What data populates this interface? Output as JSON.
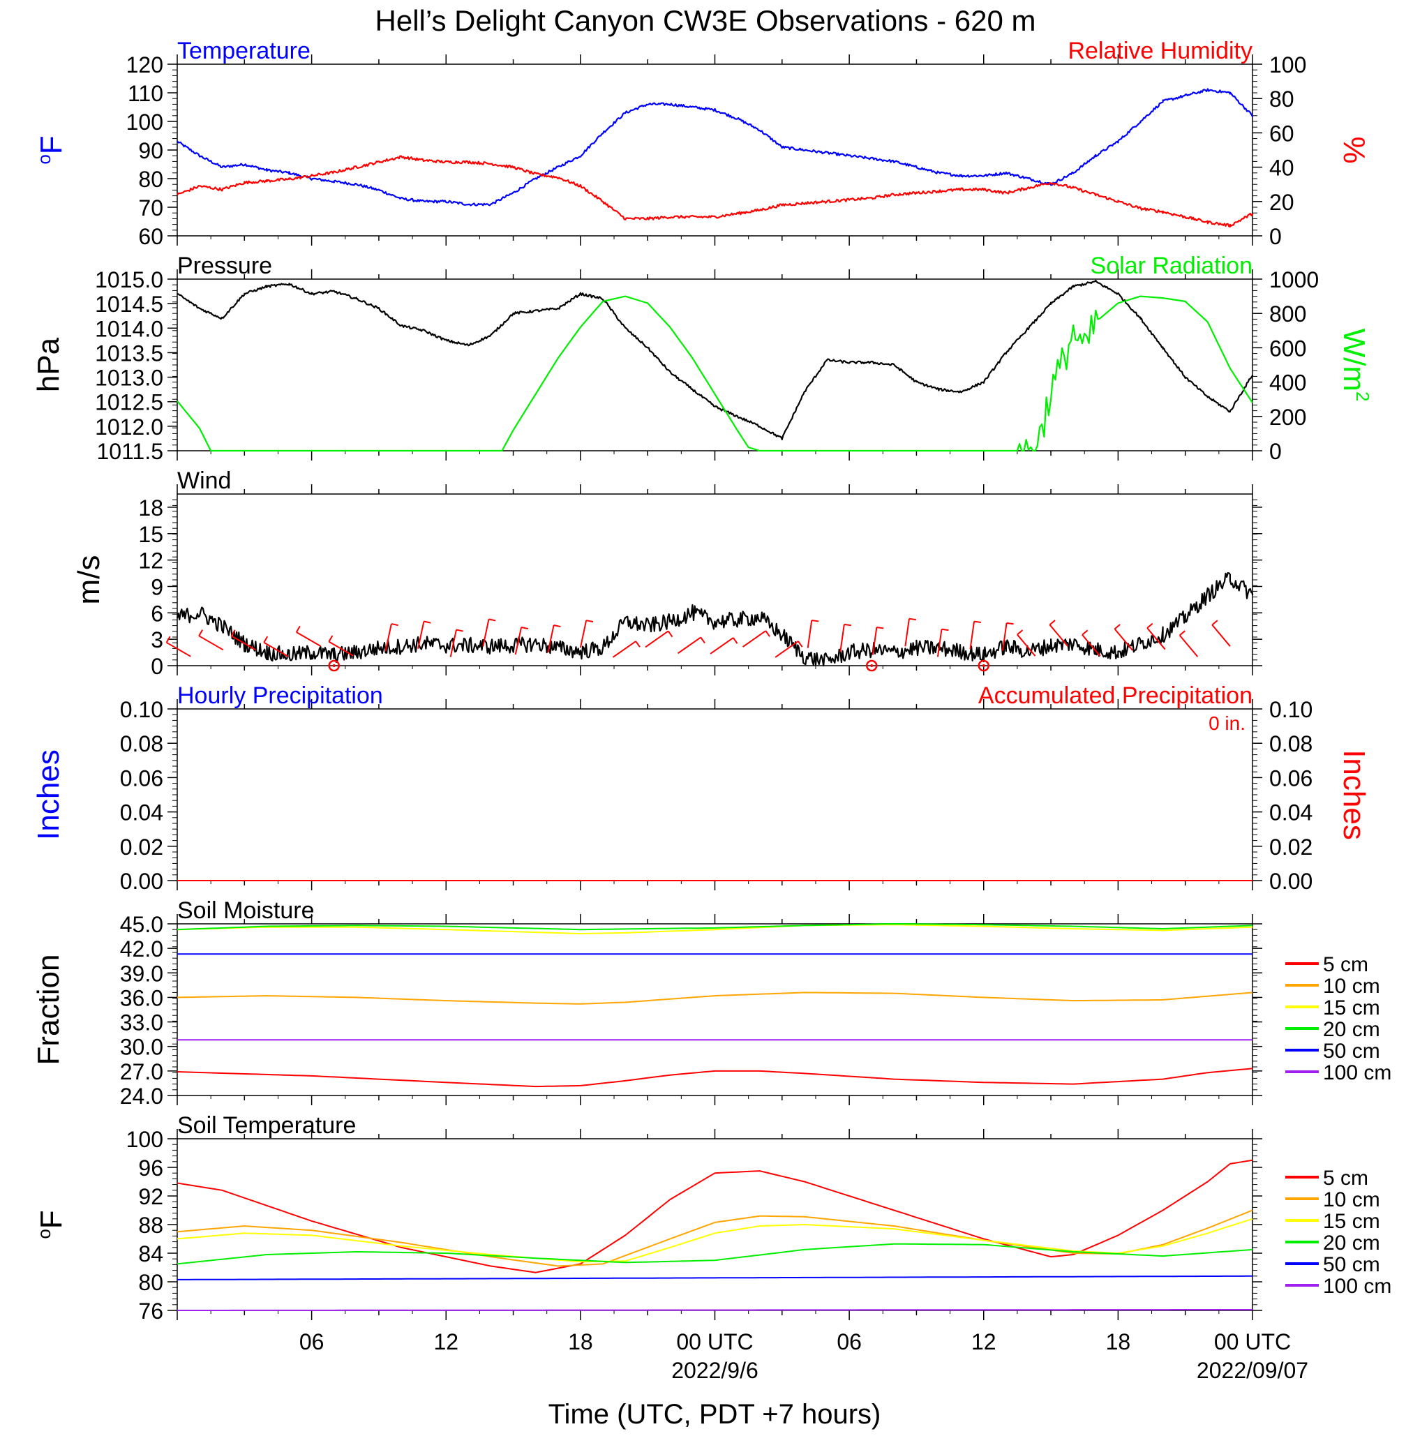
{
  "title": "Hell’s Delight Canyon CW3E Observations - 620 m",
  "xaxis": {
    "tick_labels": [
      "06",
      "12",
      "18",
      "00 UTC",
      "06",
      "12",
      "18",
      "00 UTC"
    ],
    "date_labels": [
      "2022/9/6",
      "2022/09/07"
    ],
    "label": "Time (UTC, PDT +7 hours)"
  },
  "colors": {
    "blue": "#0000ff",
    "red": "#ff0000",
    "green": "#00ee00",
    "black": "#000000",
    "orange": "#ffa500",
    "yellow": "#ffff00",
    "purple": "#a020f0"
  },
  "legend_depths": [
    "5 cm",
    "10 cm",
    "15 cm",
    "20 cm",
    "50 cm",
    "100 cm"
  ],
  "chart_data": [
    {
      "type": "line",
      "panel": "temperature-humidity",
      "left_title": "Temperature",
      "right_title": "Relative Humidity",
      "left_unit": "oF",
      "right_unit": "%",
      "left_ylim": [
        60,
        120
      ],
      "left_ticks": [
        "60",
        "70",
        "80",
        "90",
        "100",
        "110",
        "120"
      ],
      "right_ylim": [
        0,
        100
      ],
      "right_ticks": [
        "0",
        "20",
        "40",
        "60",
        "80",
        "100"
      ],
      "xlim_hours": [
        0,
        48
      ],
      "series": [
        {
          "axis": "left",
          "color": "#0000ff",
          "x": [
            0,
            1,
            2,
            3,
            4,
            5,
            6,
            7,
            8,
            9,
            10,
            11,
            12,
            13,
            14,
            15,
            16,
            17,
            18,
            19,
            20,
            21,
            22,
            23,
            24,
            25,
            26,
            27,
            28,
            29,
            30,
            31,
            32,
            33,
            34,
            35,
            36,
            37,
            38,
            39,
            40,
            41,
            42,
            43,
            44,
            45,
            46,
            47,
            48
          ],
          "y": [
            93,
            88,
            84,
            85,
            83,
            82,
            80,
            79,
            78,
            76,
            73,
            72,
            72,
            71,
            71,
            75,
            80,
            84,
            88,
            96,
            103,
            106,
            106,
            105,
            104,
            101,
            97,
            91,
            90,
            89,
            88,
            87,
            86,
            84,
            82,
            81,
            81,
            82,
            80,
            78,
            82,
            88,
            93,
            100,
            107,
            109,
            111,
            110,
            102
          ]
        },
        {
          "axis": "right",
          "color": "#ff0000",
          "x": [
            0,
            1,
            2,
            3,
            4,
            5,
            6,
            7,
            8,
            9,
            10,
            11,
            12,
            13,
            14,
            15,
            16,
            17,
            18,
            19,
            20,
            21,
            22,
            23,
            24,
            25,
            26,
            27,
            28,
            29,
            30,
            31,
            32,
            33,
            34,
            35,
            36,
            37,
            38,
            39,
            40,
            41,
            42,
            43,
            44,
            45,
            46,
            47,
            48
          ],
          "y": [
            24,
            29,
            27,
            31,
            32,
            33,
            35,
            37,
            40,
            43,
            46,
            44,
            43,
            43,
            42,
            40,
            36,
            34,
            29,
            20,
            10,
            10,
            11,
            11,
            11,
            13,
            15,
            18,
            19,
            20,
            21,
            22,
            24,
            25,
            26,
            27,
            27,
            25,
            28,
            31,
            28,
            24,
            20,
            16,
            14,
            11,
            8,
            6,
            13
          ]
        }
      ]
    },
    {
      "type": "line",
      "panel": "pressure-solar",
      "left_title": "Pressure",
      "right_title": "Solar Radiation",
      "left_unit": "hPa",
      "right_unit": "W/m2",
      "left_ylim": [
        1011.5,
        1015.0
      ],
      "left_ticks": [
        "1011.5",
        "1012.0",
        "1012.5",
        "1013.0",
        "1013.5",
        "1014.0",
        "1014.5",
        "1015.0"
      ],
      "right_ylim": [
        0,
        1000
      ],
      "right_ticks": [
        "0",
        "200",
        "400",
        "600",
        "800",
        "1000"
      ],
      "xlim_hours": [
        0,
        48
      ],
      "series": [
        {
          "axis": "left",
          "color": "#000000",
          "x": [
            0,
            1,
            2,
            3,
            4,
            5,
            6,
            7,
            8,
            9,
            10,
            11,
            12,
            13,
            14,
            15,
            16,
            17,
            18,
            19,
            20,
            21,
            22,
            23,
            24,
            25,
            26,
            27,
            28,
            29,
            30,
            31,
            32,
            33,
            34,
            35,
            36,
            37,
            38,
            39,
            40,
            41,
            42,
            43,
            44,
            45,
            46,
            47,
            48
          ],
          "y": [
            1014.7,
            1014.4,
            1014.2,
            1014.7,
            1014.85,
            1014.9,
            1014.7,
            1014.75,
            1014.6,
            1014.4,
            1014.05,
            1013.95,
            1013.75,
            1013.65,
            1013.85,
            1014.3,
            1014.35,
            1014.4,
            1014.7,
            1014.6,
            1014.0,
            1013.6,
            1013.1,
            1012.75,
            1012.4,
            1012.2,
            1012.0,
            1011.75,
            1012.7,
            1013.35,
            1013.3,
            1013.3,
            1013.25,
            1012.9,
            1012.75,
            1012.7,
            1012.9,
            1013.5,
            1014.0,
            1014.5,
            1014.85,
            1014.95,
            1014.7,
            1014.2,
            1013.6,
            1013.0,
            1012.6,
            1012.3,
            1013.05
          ]
        },
        {
          "axis": "right",
          "color": "#00ee00",
          "x": [
            0,
            1,
            1.5,
            2,
            4,
            6,
            8,
            10,
            12,
            13,
            14,
            14.5,
            15,
            16,
            17,
            18,
            19,
            20,
            21,
            22,
            23,
            24,
            25,
            25.5,
            26,
            28,
            30,
            32,
            34,
            36,
            37,
            37.5,
            38,
            38.5,
            39,
            39.5,
            40,
            40.5,
            41,
            42,
            43,
            44,
            45,
            46,
            47,
            48
          ],
          "y": [
            290,
            130,
            0,
            0,
            0,
            0,
            0,
            0,
            0,
            0,
            0,
            0,
            120,
            330,
            540,
            720,
            870,
            900,
            860,
            720,
            540,
            330,
            120,
            20,
            0,
            0,
            0,
            0,
            0,
            0,
            0,
            0,
            0,
            80,
            350,
            500,
            700,
            580,
            750,
            860,
            900,
            890,
            870,
            750,
            480,
            280
          ]
        }
      ]
    },
    {
      "type": "line",
      "panel": "wind",
      "left_title": "Wind",
      "left_unit": "m/s",
      "left_ylim": [
        0,
        19.5
      ],
      "left_ticks": [
        "0",
        "3",
        "6",
        "9",
        "12",
        "15",
        "18"
      ],
      "xlim_hours": [
        0,
        48
      ],
      "series": [
        {
          "axis": "left",
          "color": "#000000",
          "x": [
            0,
            1,
            2,
            3,
            4,
            5,
            6,
            7,
            8,
            9,
            10,
            11,
            12,
            13,
            14,
            15,
            16,
            17,
            18,
            19,
            20,
            21,
            22,
            23,
            24,
            25,
            26,
            27,
            28,
            29,
            30,
            31,
            32,
            33,
            34,
            35,
            36,
            37,
            38,
            39,
            40,
            41,
            42,
            43,
            44,
            45,
            46,
            47,
            48
          ],
          "y": [
            5.5,
            6,
            4.5,
            2.5,
            1.5,
            1.2,
            1.5,
            1.2,
            1.5,
            2,
            2.2,
            2.5,
            2.3,
            2.3,
            2.2,
            2.3,
            2.5,
            2,
            1.6,
            2,
            5,
            4.5,
            5,
            6,
            5,
            5.2,
            5.5,
            3.5,
            1,
            0.5,
            1.5,
            1.8,
            1.5,
            2,
            2,
            1.6,
            1.2,
            2.2,
            1.6,
            2.3,
            2.5,
            1.8,
            1.5,
            2.5,
            3.5,
            5.5,
            8,
            10,
            8
          ]
        }
      ],
      "calm_hours": [
        7,
        31,
        36
      ]
    },
    {
      "type": "line",
      "panel": "precipitation",
      "left_title": "Hourly Precipitation",
      "right_title": "Accumulated Precipitation",
      "accumulated_label": "0 in.",
      "left_unit": "Inches",
      "right_unit": "Inches",
      "left_ylim": [
        0,
        0.1
      ],
      "left_ticks": [
        "0.00",
        "0.02",
        "0.04",
        "0.06",
        "0.08",
        "0.10"
      ],
      "right_ylim": [
        0,
        0.1
      ],
      "right_ticks": [
        "0.00",
        "0.02",
        "0.04",
        "0.06",
        "0.08",
        "0.10"
      ],
      "xlim_hours": [
        0,
        48
      ],
      "series": [
        {
          "axis": "right",
          "color": "#ff0000",
          "x": [
            0,
            48
          ],
          "y": [
            0,
            0
          ]
        }
      ]
    },
    {
      "type": "line",
      "panel": "soil-moisture",
      "left_title": "Soil Moisture",
      "left_unit": "Fraction",
      "left_ylim": [
        24.0,
        45.0
      ],
      "left_ticks": [
        "24.0",
        "27.0",
        "30.0",
        "33.0",
        "36.0",
        "39.0",
        "42.0",
        "45.0"
      ],
      "xlim_hours": [
        0,
        48
      ],
      "series": [
        {
          "name": "5 cm",
          "color": "#ff0000",
          "x": [
            0,
            6,
            12,
            16,
            18,
            20,
            22,
            24,
            26,
            28,
            32,
            36,
            40,
            44,
            46,
            48
          ],
          "y": [
            26.9,
            26.4,
            25.6,
            25.1,
            25.2,
            25.8,
            26.5,
            27.0,
            27.0,
            26.7,
            26.0,
            25.6,
            25.4,
            26.0,
            26.8,
            27.3
          ]
        },
        {
          "name": "10 cm",
          "color": "#ffa500",
          "x": [
            0,
            4,
            8,
            12,
            16,
            18,
            20,
            24,
            28,
            32,
            36,
            40,
            44,
            48
          ],
          "y": [
            36.0,
            36.2,
            36.0,
            35.6,
            35.3,
            35.2,
            35.4,
            36.2,
            36.6,
            36.5,
            36.0,
            35.6,
            35.7,
            36.6
          ]
        },
        {
          "name": "15 cm",
          "color": "#ffff00",
          "x": [
            0,
            4,
            8,
            12,
            18,
            20,
            24,
            28,
            32,
            36,
            40,
            44,
            48
          ],
          "y": [
            44.3,
            44.6,
            44.6,
            44.3,
            43.8,
            43.9,
            44.3,
            44.8,
            44.9,
            44.7,
            44.4,
            44.2,
            44.6
          ]
        },
        {
          "name": "20 cm",
          "color": "#00ee00",
          "x": [
            0,
            4,
            8,
            12,
            18,
            24,
            28,
            32,
            36,
            40,
            44,
            48
          ],
          "y": [
            44.3,
            44.7,
            44.8,
            44.7,
            44.3,
            44.5,
            44.8,
            45.0,
            44.9,
            44.7,
            44.4,
            44.8
          ]
        },
        {
          "name": "50 cm",
          "color": "#0000ff",
          "x": [
            0,
            48
          ],
          "y": [
            41.3,
            41.3
          ]
        },
        {
          "name": "100 cm",
          "color": "#a020f0",
          "x": [
            0,
            48
          ],
          "y": [
            30.8,
            30.8
          ]
        }
      ]
    },
    {
      "type": "line",
      "panel": "soil-temperature",
      "left_title": "Soil Temperature",
      "left_unit": "oF",
      "left_ylim": [
        76,
        100
      ],
      "left_ticks": [
        "76",
        "80",
        "84",
        "88",
        "92",
        "96",
        "100"
      ],
      "xlim_hours": [
        0,
        48
      ],
      "series": [
        {
          "name": "5 cm",
          "color": "#ff0000",
          "x": [
            0,
            2,
            6,
            10,
            14,
            16,
            18,
            20,
            22,
            24,
            26,
            28,
            32,
            36,
            39,
            40,
            42,
            44,
            46,
            47,
            48
          ],
          "y": [
            93.8,
            92.8,
            88.5,
            84.8,
            82.2,
            81.3,
            82.5,
            86.5,
            91.5,
            95.2,
            95.5,
            94.0,
            90.0,
            86.0,
            83.5,
            83.8,
            86.5,
            90.0,
            94.0,
            96.5,
            97.0
          ]
        },
        {
          "name": "10 cm",
          "color": "#ffa500",
          "x": [
            0,
            3,
            6,
            10,
            14,
            17,
            19,
            22,
            24,
            26,
            28,
            32,
            36,
            40,
            42,
            44,
            46,
            48
          ],
          "y": [
            87.0,
            87.8,
            87.2,
            85.5,
            83.5,
            82.2,
            82.5,
            86.0,
            88.3,
            89.2,
            89.1,
            87.8,
            85.8,
            84.0,
            83.9,
            85.2,
            87.5,
            90.0
          ]
        },
        {
          "name": "15 cm",
          "color": "#ffff00",
          "x": [
            0,
            3,
            6,
            10,
            14,
            18,
            20,
            22,
            24,
            26,
            28,
            32,
            36,
            40,
            42,
            44,
            46,
            48
          ],
          "y": [
            86.0,
            86.8,
            86.5,
            85.0,
            83.8,
            82.8,
            82.9,
            84.8,
            86.8,
            87.8,
            88.0,
            87.4,
            85.8,
            84.3,
            84.0,
            85.0,
            86.8,
            88.8
          ]
        },
        {
          "name": "20 cm",
          "color": "#00ee00",
          "x": [
            0,
            4,
            8,
            12,
            16,
            20,
            24,
            28,
            32,
            36,
            40,
            44,
            48
          ],
          "y": [
            82.5,
            83.8,
            84.2,
            84.0,
            83.3,
            82.7,
            83.0,
            84.5,
            85.3,
            85.2,
            84.2,
            83.6,
            84.5
          ]
        },
        {
          "name": "50 cm",
          "color": "#0000ff",
          "x": [
            0,
            48
          ],
          "y": [
            80.3,
            80.8
          ]
        },
        {
          "name": "100 cm",
          "color": "#a020f0",
          "x": [
            0,
            48
          ],
          "y": [
            76.0,
            76.1
          ]
        }
      ]
    }
  ]
}
